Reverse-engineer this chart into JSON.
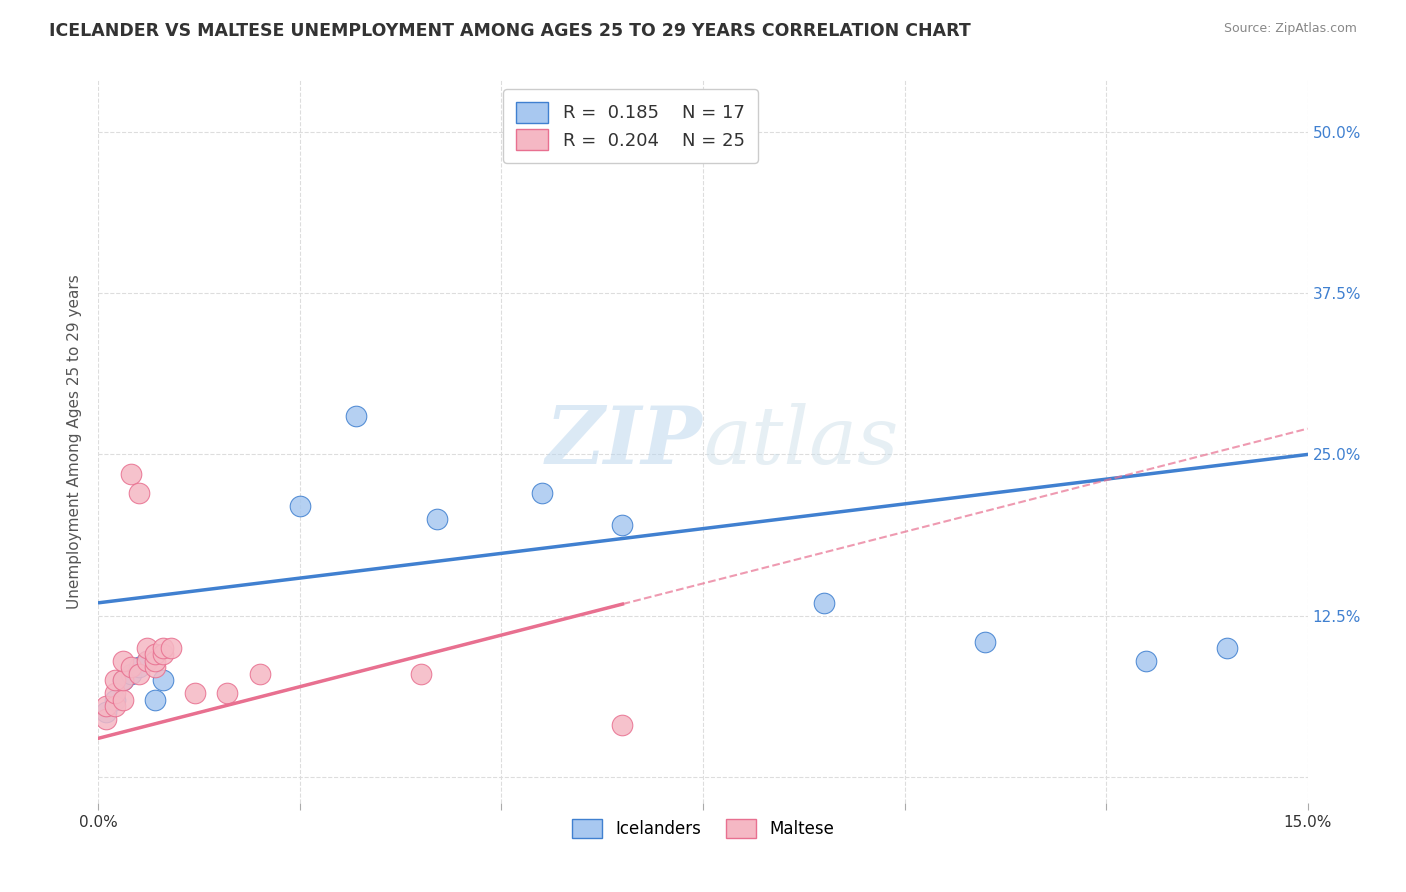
{
  "title": "ICELANDER VS MALTESE UNEMPLOYMENT AMONG AGES 25 TO 29 YEARS CORRELATION CHART",
  "source": "Source: ZipAtlas.com",
  "ylabel": "Unemployment Among Ages 25 to 29 years",
  "xlim": [
    0.0,
    0.15
  ],
  "ylim": [
    -0.02,
    0.54
  ],
  "xticks": [
    0.0,
    0.025,
    0.05,
    0.075,
    0.1,
    0.125,
    0.15
  ],
  "xtick_labels": [
    "0.0%",
    "",
    "",
    "",
    "",
    "",
    "15.0%"
  ],
  "ytick_positions": [
    0.0,
    0.125,
    0.25,
    0.375,
    0.5
  ],
  "ytick_labels": [
    "",
    "12.5%",
    "25.0%",
    "37.5%",
    "50.0%"
  ],
  "icelander_color": "#a8c8f0",
  "maltese_color": "#f5b8c4",
  "icelander_line_color": "#4080d0",
  "maltese_line_color": "#e87090",
  "legend_r_icelander": "0.185",
  "legend_n_icelander": "17",
  "legend_r_maltese": "0.204",
  "legend_n_maltese": "25",
  "icelander_x": [
    0.001,
    0.002,
    0.003,
    0.004,
    0.005,
    0.006,
    0.007,
    0.008,
    0.025,
    0.032,
    0.042,
    0.055,
    0.065,
    0.09,
    0.11,
    0.13,
    0.14
  ],
  "icelander_y": [
    0.05,
    0.06,
    0.075,
    0.08,
    0.085,
    0.09,
    0.06,
    0.075,
    0.21,
    0.28,
    0.2,
    0.22,
    0.195,
    0.135,
    0.105,
    0.09,
    0.1
  ],
  "maltese_x": [
    0.001,
    0.001,
    0.002,
    0.002,
    0.002,
    0.003,
    0.003,
    0.003,
    0.004,
    0.004,
    0.005,
    0.005,
    0.006,
    0.006,
    0.007,
    0.007,
    0.007,
    0.008,
    0.008,
    0.009,
    0.012,
    0.016,
    0.02,
    0.04,
    0.065
  ],
  "maltese_y": [
    0.045,
    0.055,
    0.055,
    0.065,
    0.075,
    0.06,
    0.075,
    0.09,
    0.085,
    0.235,
    0.08,
    0.22,
    0.09,
    0.1,
    0.085,
    0.09,
    0.095,
    0.095,
    0.1,
    0.1,
    0.065,
    0.065,
    0.08,
    0.08,
    0.04
  ],
  "watermark_zip": "ZIP",
  "watermark_atlas": "atlas",
  "background_color": "#ffffff",
  "grid_color": "#dddddd"
}
